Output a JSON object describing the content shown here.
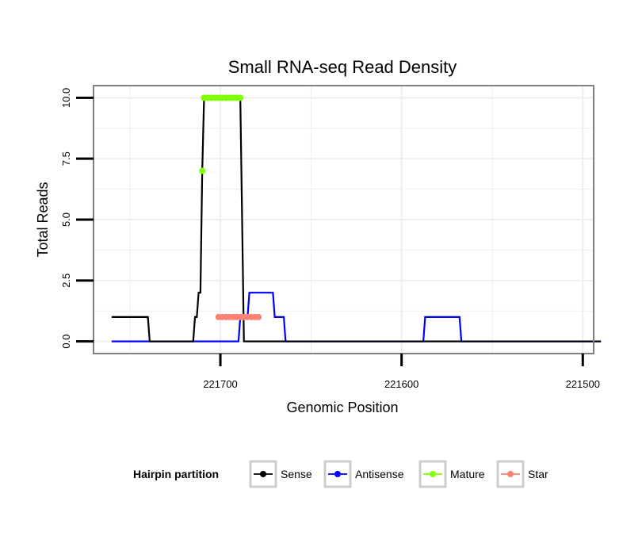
{
  "chart_data": {
    "type": "line",
    "title": "Small RNA-seq Read Density",
    "xlabel": "Genomic Position",
    "ylabel": "Total Reads",
    "xlim": [
      221770,
      221494
    ],
    "ylim": [
      -0.5,
      10.5
    ],
    "x_reversed": true,
    "x_ticks": [
      221700,
      221600,
      221500
    ],
    "x_tick_labels": [
      "221700",
      "221600",
      "221500"
    ],
    "y_ticks": [
      0,
      2.5,
      5,
      7.5,
      10
    ],
    "y_tick_labels": [
      "0.0",
      "2.5",
      "5.0",
      "7.5",
      "10.0"
    ],
    "x_minor_grid": [
      221750,
      221650,
      221550
    ],
    "y_minor_grid": [
      1.25,
      3.75,
      6.25,
      8.75
    ],
    "grid": true,
    "legend": {
      "title": "Hairpin partition",
      "placement": "bottom",
      "entries": [
        "Sense",
        "Antisense",
        "Mature",
        "Star"
      ]
    },
    "colors": {
      "Sense": "#000000",
      "Antisense": "#0000ff",
      "Mature": "#7fff00",
      "Star": "#fa8072",
      "grid": "#eeeeee",
      "panel_border": "#808080"
    },
    "series": [
      {
        "name": "Antisense",
        "style": "line",
        "points": [
          [
            221760,
            0
          ],
          [
            221690,
            0
          ],
          [
            221689,
            1
          ],
          [
            221685,
            1
          ],
          [
            221684,
            2
          ],
          [
            221671,
            2
          ],
          [
            221670,
            1
          ],
          [
            221665,
            1
          ],
          [
            221664,
            0
          ],
          [
            221588,
            0
          ],
          [
            221587,
            1
          ],
          [
            221568,
            1
          ],
          [
            221567,
            0
          ],
          [
            221490,
            0
          ]
        ]
      },
      {
        "name": "Sense",
        "style": "line",
        "points": [
          [
            221760,
            1
          ],
          [
            221740,
            1
          ],
          [
            221739,
            0
          ],
          [
            221715,
            0
          ],
          [
            221714,
            1
          ],
          [
            221713,
            1
          ],
          [
            221712,
            2
          ],
          [
            221711,
            2
          ],
          [
            221710,
            7
          ],
          [
            221709,
            10
          ],
          [
            221689,
            10
          ],
          [
            221687,
            0
          ],
          [
            221490,
            0
          ]
        ]
      },
      {
        "name": "Star",
        "style": "points",
        "points": [
          [
            221701,
            1
          ],
          [
            221699,
            1
          ],
          [
            221697,
            1
          ],
          [
            221695,
            1
          ],
          [
            221693,
            1
          ],
          [
            221691,
            1
          ],
          [
            221689,
            1
          ],
          [
            221687,
            1
          ],
          [
            221685,
            1
          ],
          [
            221683,
            1
          ],
          [
            221681,
            1
          ],
          [
            221679,
            1
          ]
        ]
      },
      {
        "name": "Mature",
        "style": "points",
        "points": [
          [
            221710,
            7
          ],
          [
            221709,
            10
          ],
          [
            221707,
            10
          ],
          [
            221705,
            10
          ],
          [
            221703,
            10
          ],
          [
            221701,
            10
          ],
          [
            221699,
            10
          ],
          [
            221697,
            10
          ],
          [
            221695,
            10
          ],
          [
            221693,
            10
          ],
          [
            221691,
            10
          ],
          [
            221689,
            10
          ]
        ]
      }
    ]
  }
}
